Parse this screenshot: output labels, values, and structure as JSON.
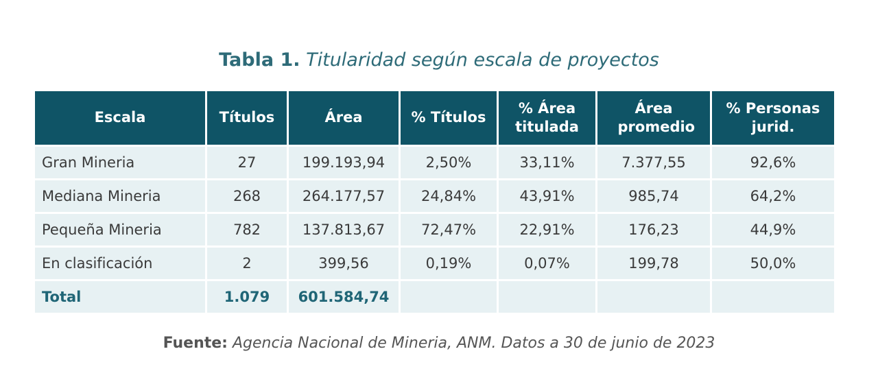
{
  "header": {
    "label": "Tabla 1.",
    "title": "Titularidad según escala de proyectos"
  },
  "table": {
    "columns": [
      "Escala",
      "Títulos",
      "Área",
      "% Títulos",
      "% Área titulada",
      "Área promedio",
      "% Personas jurid."
    ],
    "rows": [
      [
        "Gran Mineria",
        "27",
        "199.193,94",
        "2,50%",
        "33,11%",
        "7.377,55",
        "92,6%"
      ],
      [
        "Mediana Mineria",
        "268",
        "264.177,57",
        "24,84%",
        "43,91%",
        "985,74",
        "64,2%"
      ],
      [
        "Pequeña Mineria",
        "782",
        "137.813,67",
        "72,47%",
        "22,91%",
        "176,23",
        "44,9%"
      ],
      [
        "En clasificación",
        "2",
        "399,56",
        "0,19%",
        "0,07%",
        "199,78",
        "50,0%"
      ]
    ],
    "total": [
      "Total",
      "1.079",
      "601.584,74"
    ]
  },
  "footer": {
    "label": "Fuente:",
    "text": "Agencia Nacional de Mineria, ANM. Datos a 30 de junio de 2023"
  }
}
